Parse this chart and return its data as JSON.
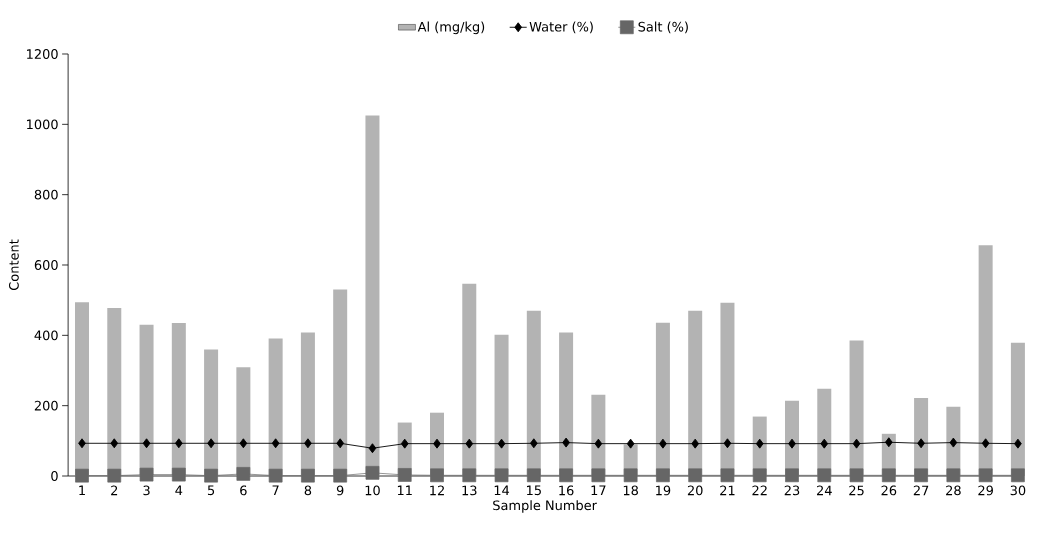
{
  "chart_data": {
    "type": "bar",
    "xlabel": "Sample Number",
    "ylabel": "Content",
    "categories": [
      "1",
      "2",
      "3",
      "4",
      "5",
      "6",
      "7",
      "8",
      "9",
      "10",
      "11",
      "12",
      "13",
      "14",
      "15",
      "16",
      "17",
      "18",
      "19",
      "20",
      "21",
      "22",
      "23",
      "24",
      "25",
      "26",
      "27",
      "28",
      "29",
      "30"
    ],
    "series": [
      {
        "name": "Al (mg/kg)",
        "color": "#b3b3b3",
        "values": [
          494,
          478,
          430,
          435,
          360,
          309,
          391,
          408,
          530,
          1025,
          152,
          180,
          547,
          402,
          470,
          408,
          231,
          90,
          436,
          470,
          493,
          169,
          214,
          248,
          385,
          120,
          222,
          197,
          656,
          379
        ]
      },
      {
        "name": "Water (%)",
        "type": "line",
        "color": "#000000",
        "marker": "diamond",
        "values": [
          93,
          93,
          93,
          93,
          93,
          93,
          93,
          93,
          93,
          79,
          92,
          92,
          92,
          92,
          93,
          95,
          92,
          92,
          92,
          92,
          93,
          92,
          92,
          92,
          92,
          96,
          93,
          95,
          93,
          92
        ]
      },
      {
        "name": "Salt (%)",
        "type": "line",
        "color": "#666666",
        "marker": "square",
        "values": [
          1,
          1,
          4,
          4,
          1,
          6,
          1,
          1,
          1,
          9,
          3,
          2,
          2,
          2,
          2,
          2,
          2,
          2,
          2,
          2,
          2,
          2,
          2,
          2,
          2,
          2,
          2,
          2,
          2,
          2
        ]
      }
    ],
    "ylim": [
      0,
      1200
    ],
    "yticks": [
      0,
      200,
      400,
      600,
      800,
      1000,
      1200
    ],
    "legend": "top",
    "grid": false
  }
}
